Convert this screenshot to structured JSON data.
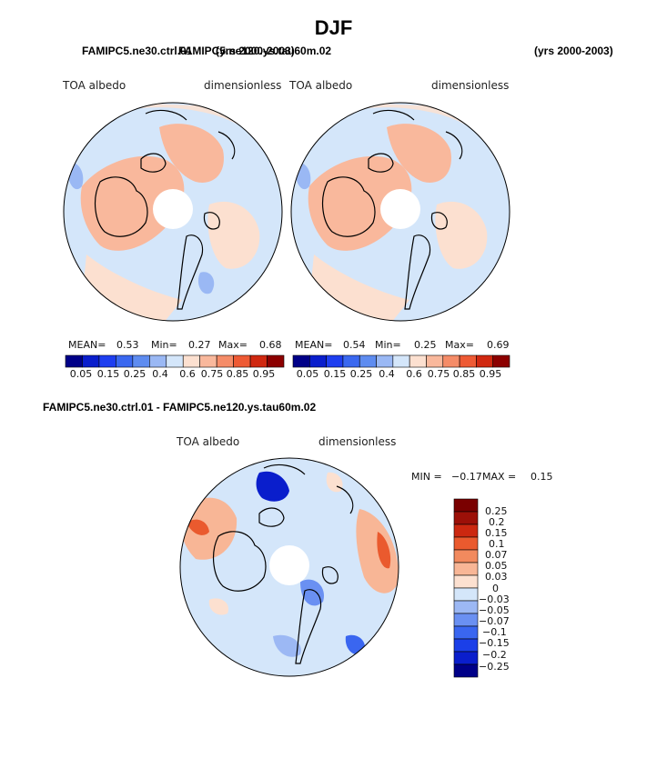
{
  "figure": {
    "title": "DJF",
    "left_run": "FAMIPC5.ne30.ctrl.01",
    "right_run": "FAMIPC5.ne120.ys.tau60m.02",
    "left_years": "(yrs 2000-2003)",
    "right_years": "(yrs 2000-2003)",
    "diff_title": "FAMIPC5.ne30.ctrl.01 - FAMIPC5.ne120.ys.tau60m.02"
  },
  "colors": {
    "abs_palette": [
      "#000088",
      "#0a1ecc",
      "#1e3ef0",
      "#3a68f0",
      "#5e8cf0",
      "#9ab8f4",
      "#d4e6fa",
      "#fce0d0",
      "#f9b89c",
      "#f58c68",
      "#ee5a34",
      "#d02810",
      "#8c0000"
    ],
    "diff_palette": [
      "#000088",
      "#0a1ecc",
      "#1b3fe8",
      "#3a66f0",
      "#6a90f2",
      "#9cb8f4",
      "#d4e6fa",
      "#fce0d0",
      "#f8b696",
      "#f28a5e",
      "#ea5a2e",
      "#cc2810",
      "#9c1008",
      "#7a0000"
    ]
  },
  "chart_data": [
    {
      "type": "heatmap",
      "projection": "north-polar-stereographic",
      "title": "TOA albedo",
      "units": "dimensionless",
      "run": "FAMIPC5.ne30.ctrl.01",
      "stats": {
        "mean_label": "MEAN=",
        "mean": "0.53",
        "min_label": "Min=",
        "min": "0.27",
        "max_label": "Max=",
        "max": "0.68"
      },
      "colorbar_ticks": [
        "0.05",
        "0.15",
        "0.25",
        "0.4",
        "0.6",
        "0.75",
        "0.85",
        "0.95"
      ]
    },
    {
      "type": "heatmap",
      "projection": "north-polar-stereographic",
      "title": "TOA albedo",
      "units": "dimensionless",
      "run": "FAMIPC5.ne120.ys.tau60m.02",
      "stats": {
        "mean_label": "MEAN=",
        "mean": "0.54",
        "min_label": "Min=",
        "min": "0.25",
        "max_label": "Max=",
        "max": "0.69"
      },
      "colorbar_ticks": [
        "0.05",
        "0.15",
        "0.25",
        "0.4",
        "0.6",
        "0.75",
        "0.85",
        "0.95"
      ]
    },
    {
      "type": "heatmap",
      "projection": "north-polar-stereographic",
      "title": "TOA albedo",
      "units": "dimensionless",
      "stats": {
        "min_label": "MIN =",
        "min": "−0.17",
        "max_label": "MAX =",
        "max": "0.15"
      },
      "colorbar_ticks": [
        "0.25",
        "0.2",
        "0.15",
        "0.1",
        "0.07",
        "0.05",
        "0.03",
        "0",
        "−0.03",
        "−0.05",
        "−0.07",
        "−0.1",
        "−0.15",
        "−0.2",
        "−0.25"
      ]
    }
  ]
}
